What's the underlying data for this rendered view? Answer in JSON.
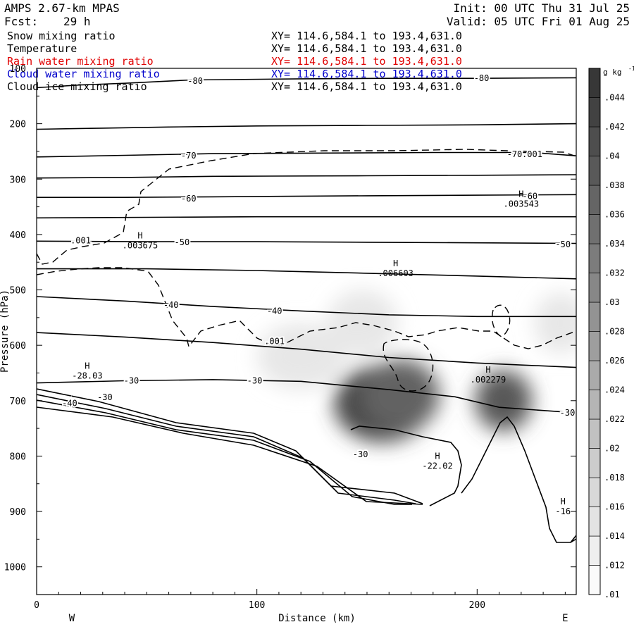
{
  "header": {
    "model": "AMPS 2.67-km MPAS",
    "init": "Init: 00 UTC Thu 31 Jul 25",
    "fcst_label": "Fcst:",
    "fcst_value": "29 h",
    "valid": "Valid: 05 UTC Fri 01 Aug 25"
  },
  "fields": [
    {
      "name": "Snow mixing ratio",
      "xy": "XY= 114.6,584.1 to 193.4,631.0",
      "color": "#000000"
    },
    {
      "name": "Temperature",
      "xy": "XY= 114.6,584.1 to 193.4,631.0",
      "color": "#000000"
    },
    {
      "name": "Rain water mixing ratio",
      "xy": "XY= 114.6,584.1 to 193.4,631.0",
      "color": "#e00000"
    },
    {
      "name": "Cloud water mixing ratio",
      "xy": "XY= 114.6,584.1 to 193.4,631.0",
      "color": "#0000cc"
    },
    {
      "name": "Cloud ice mixing ratio",
      "xy": "XY= 114.6,584.1 to 193.4,631.0",
      "color": "#000000"
    }
  ],
  "chart_data": {
    "type": "heatmap",
    "xlabel": "Distance (km)",
    "ylabel": "Pressure (hPa)",
    "xlim": [
      0,
      245
    ],
    "ylim": [
      1050,
      100
    ],
    "x_ticks": [
      "0",
      "100",
      "200"
    ],
    "x_tick_values": [
      0,
      100,
      200
    ],
    "y_ticks": [
      "100",
      "200",
      "300",
      "400",
      "500",
      "600",
      "700",
      "800",
      "900",
      "1000"
    ],
    "y_tick_values": [
      100,
      200,
      300,
      400,
      500,
      600,
      700,
      800,
      900,
      1000
    ],
    "direction_left": "W",
    "direction_right": "E",
    "colorbar": {
      "unit": "g kg",
      "unit_sup": "-1",
      "ticks": [
        ".01",
        ".012",
        ".014",
        ".016",
        ".018",
        ".02",
        ".022",
        ".024",
        ".026",
        ".028",
        ".03",
        ".032",
        ".034",
        ".036",
        ".038",
        ".04",
        ".042",
        ".044"
      ],
      "values": [
        0.01,
        0.012,
        0.014,
        0.016,
        0.018,
        0.02,
        0.022,
        0.024,
        0.026,
        0.028,
        0.03,
        0.032,
        0.034,
        0.036,
        0.038,
        0.04,
        0.042,
        0.044
      ]
    },
    "snow_blobs": [
      {
        "x": 157,
        "p": 705,
        "rx": 22,
        "rp": 70,
        "value": 0.046
      },
      {
        "x": 165,
        "p": 690,
        "rx": 18,
        "rp": 65,
        "value": 0.04
      },
      {
        "x": 148,
        "p": 560,
        "rx": 16,
        "rp": 60,
        "value": 0.012
      },
      {
        "x": 212,
        "p": 700,
        "rx": 13,
        "rp": 55,
        "value": 0.042
      },
      {
        "x": 238,
        "p": 560,
        "rx": 12,
        "rp": 55,
        "value": 0.012
      },
      {
        "x": 120,
        "p": 620,
        "rx": 20,
        "rp": 60,
        "value": 0.012
      }
    ],
    "temperature_isotherms": [
      {
        "label": "-80",
        "points": [
          [
            0,
            135
          ],
          [
            20,
            130
          ],
          [
            40,
            127
          ],
          [
            70,
            121
          ],
          [
            120,
            119
          ],
          [
            160,
            118
          ],
          [
            200,
            118
          ],
          [
            245,
            117
          ]
        ],
        "labels": [
          {
            "x": 72,
            "p": 123,
            "t": "-80"
          },
          {
            "x": 202,
            "p": 118,
            "t": "-80"
          }
        ]
      },
      {
        "label": "-70",
        "points": [
          [
            0,
            210
          ],
          [
            30,
            208
          ],
          [
            60,
            206
          ],
          [
            100,
            204
          ],
          [
            150,
            203
          ],
          [
            200,
            202
          ],
          [
            245,
            200
          ]
        ]
      },
      {
        "label": "-70",
        "points": [
          [
            0,
            260
          ],
          [
            40,
            257
          ],
          [
            80,
            254
          ],
          [
            130,
            253
          ],
          [
            180,
            252
          ],
          [
            225,
            252
          ],
          [
            245,
            258
          ]
        ],
        "labels": [
          {
            "x": 69,
            "p": 258,
            "t": "-70"
          },
          {
            "x": 217,
            "p": 255,
            "t": "-70"
          }
        ]
      },
      {
        "label": "-60",
        "points": [
          [
            0,
            298
          ],
          [
            40,
            297
          ],
          [
            80,
            295
          ],
          [
            150,
            294
          ],
          [
            200,
            293
          ],
          [
            245,
            292
          ]
        ]
      },
      {
        "label": "-60",
        "points": [
          [
            0,
            333
          ],
          [
            40,
            333
          ],
          [
            80,
            332
          ],
          [
            150,
            330
          ],
          [
            200,
            329
          ],
          [
            245,
            328
          ]
        ],
        "labels": [
          {
            "x": 69,
            "p": 335,
            "t": "-60"
          },
          {
            "x": 224,
            "p": 331,
            "t": "-60"
          }
        ]
      },
      {
        "label": "-50",
        "points": [
          [
            0,
            370
          ],
          [
            50,
            369
          ],
          [
            100,
            368
          ],
          [
            150,
            368
          ],
          [
            200,
            368
          ],
          [
            245,
            368
          ]
        ]
      },
      {
        "label": "-50",
        "points": [
          [
            0,
            412
          ],
          [
            50,
            413
          ],
          [
            100,
            413
          ],
          [
            150,
            414
          ],
          [
            200,
            415
          ],
          [
            245,
            416
          ]
        ],
        "labels": [
          {
            "x": 66,
            "p": 414,
            "t": "-50"
          },
          {
            "x": 239,
            "p": 418,
            "t": "-50"
          }
        ]
      },
      {
        "label": "-40",
        "points": [
          [
            0,
            462
          ],
          [
            50,
            462
          ],
          [
            100,
            465
          ],
          [
            150,
            470
          ],
          [
            200,
            475
          ],
          [
            245,
            480
          ]
        ]
      },
      {
        "label": "-40",
        "points": [
          [
            0,
            512
          ],
          [
            40,
            520
          ],
          [
            80,
            530
          ],
          [
            120,
            538
          ],
          [
            160,
            545
          ],
          [
            200,
            548
          ],
          [
            245,
            548
          ]
        ],
        "labels": [
          {
            "x": 61,
            "p": 527,
            "t": "-40"
          },
          {
            "x": 108,
            "p": 538,
            "t": "-40"
          }
        ]
      },
      {
        "label": "-30",
        "points": [
          [
            0,
            577
          ],
          [
            40,
            585
          ],
          [
            80,
            595
          ],
          [
            120,
            607
          ],
          [
            160,
            622
          ],
          [
            200,
            632
          ],
          [
            245,
            640
          ]
        ]
      },
      {
        "label": "-30",
        "points": [
          [
            0,
            668
          ],
          [
            40,
            664
          ],
          [
            80,
            662
          ],
          [
            120,
            665
          ],
          [
            160,
            680
          ],
          [
            190,
            693
          ],
          [
            210,
            712
          ],
          [
            245,
            722
          ]
        ],
        "labels": [
          {
            "x": 43,
            "p": 664,
            "t": "-30"
          },
          {
            "x": 99,
            "p": 664,
            "t": "-30"
          },
          {
            "x": 241,
            "p": 722,
            "t": "-30"
          }
        ]
      }
    ],
    "extra_labels": [
      {
        "x": 15,
        "p": 705,
        "t": "-40"
      },
      {
        "x": 31,
        "p": 694,
        "t": "-30"
      },
      {
        "x": 147,
        "p": 797,
        "t": "-30"
      },
      {
        "x": 20,
        "p": 411,
        "t": ".001"
      },
      {
        "x": 108,
        "p": 593,
        "t": ".001"
      },
      {
        "x": 225,
        "p": 255,
        "t": ".001"
      }
    ],
    "annotations": [
      {
        "x": 47,
        "p": 415,
        "h": "H",
        "v": ".003675"
      },
      {
        "x": 163,
        "p": 465,
        "h": "H",
        "v": ".006603"
      },
      {
        "x": 220,
        "p": 340,
        "h": "H",
        "v": ".003543"
      },
      {
        "x": 23,
        "p": 650,
        "h": "H",
        "v": "-28.03"
      },
      {
        "x": 205,
        "p": 657,
        "h": "H",
        "v": ".002279"
      },
      {
        "x": 182,
        "p": 813,
        "h": "H",
        "v": "-22.02"
      },
      {
        "x": 239,
        "p": 895,
        "h": "H",
        "v": "-16"
      }
    ]
  }
}
